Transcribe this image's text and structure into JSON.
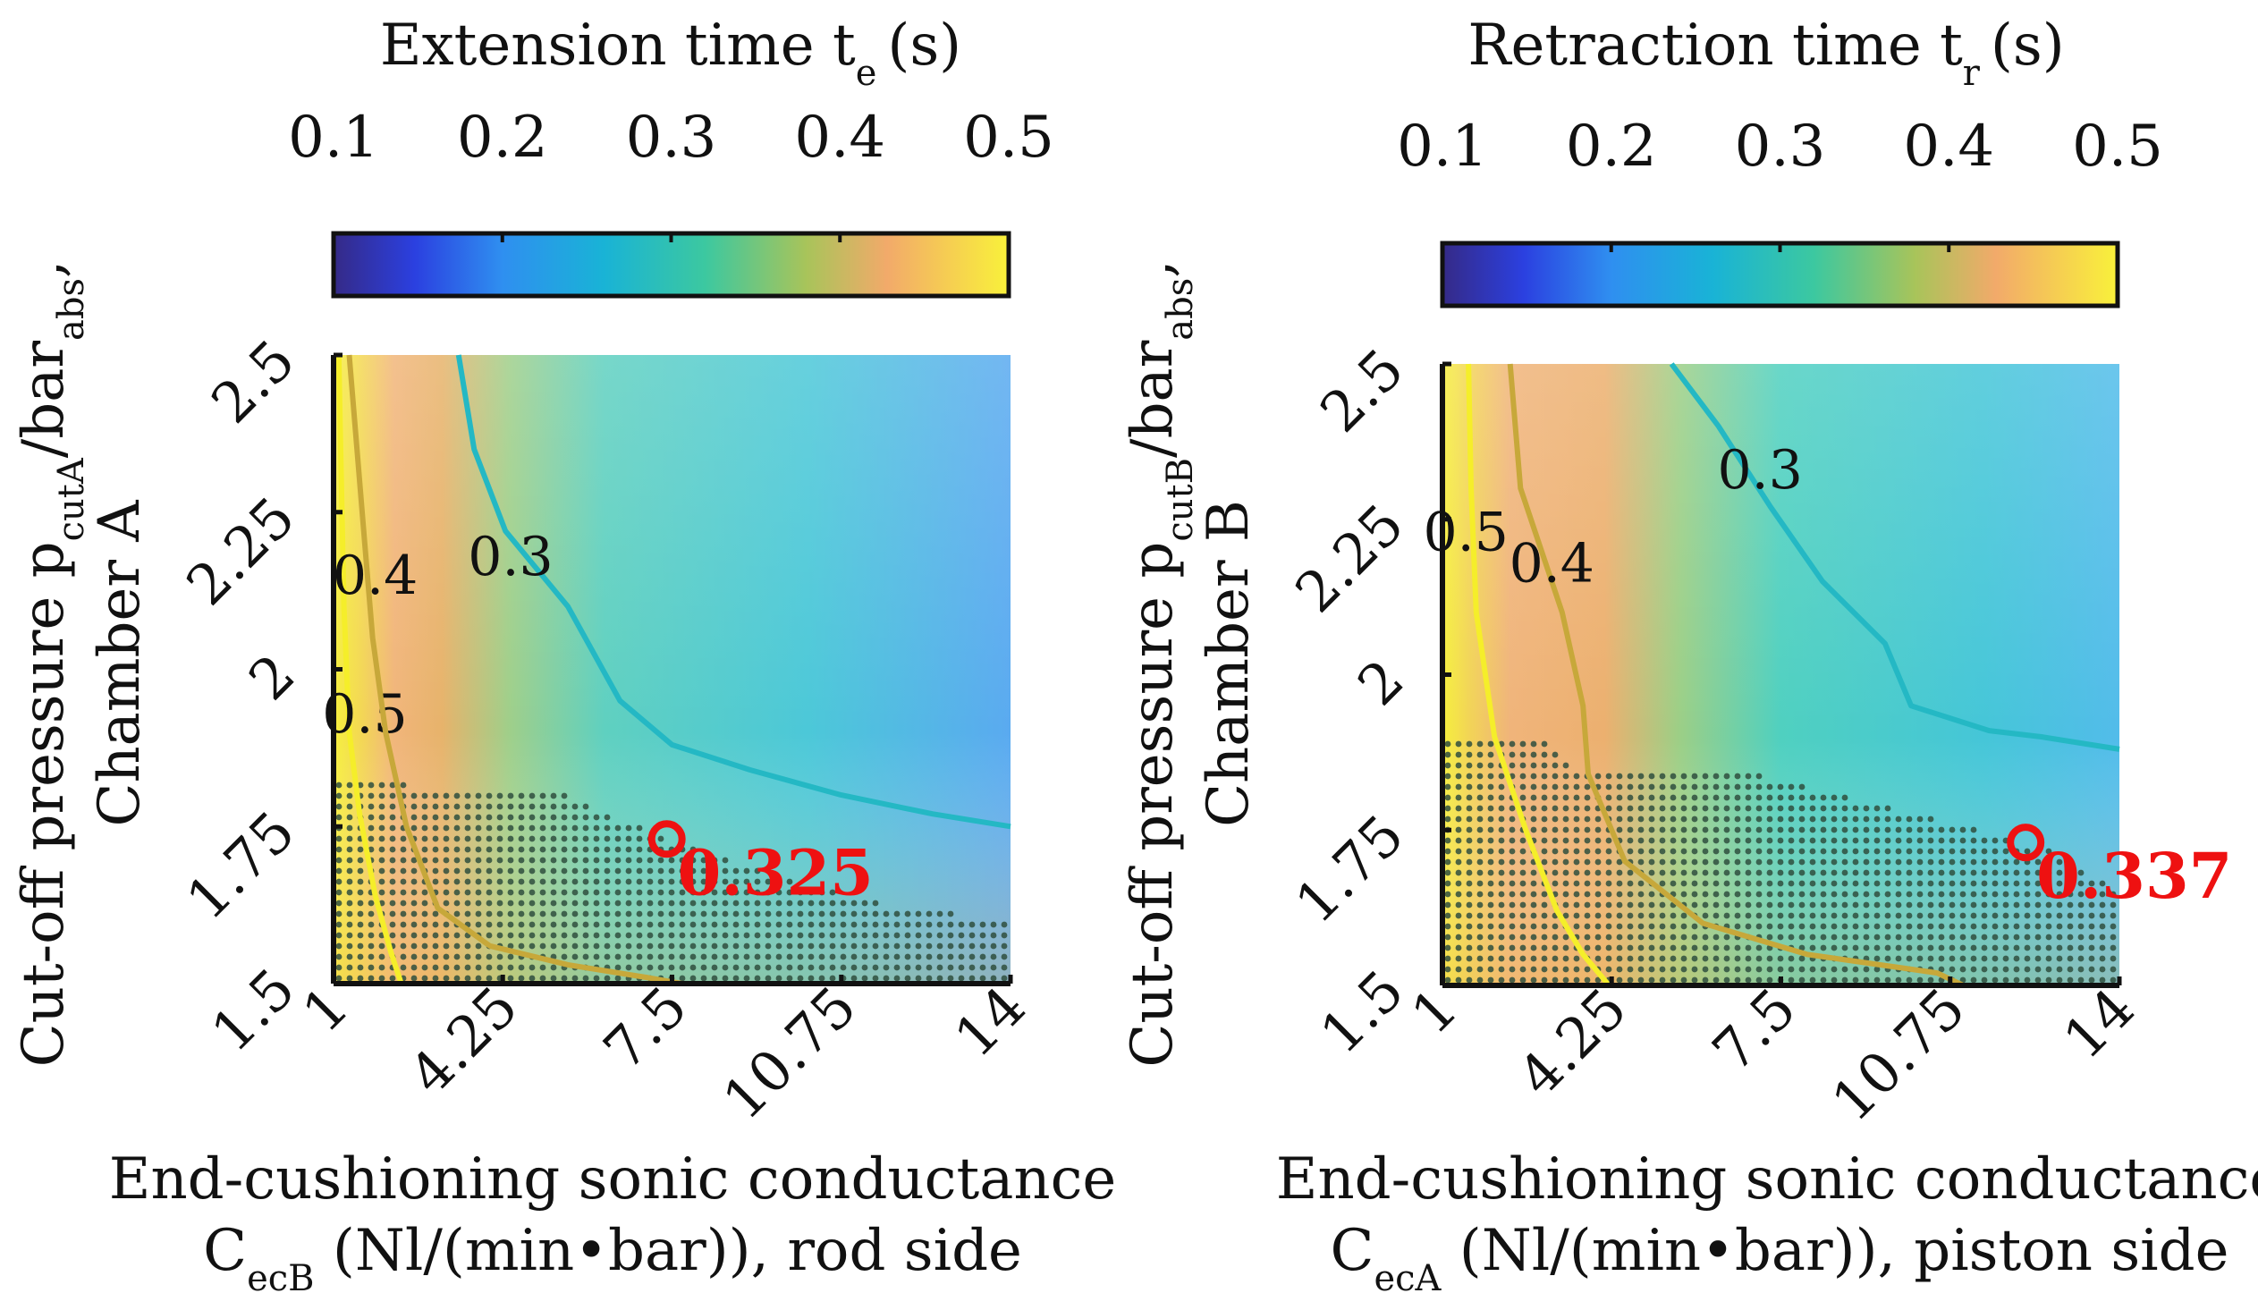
{
  "chart_data": [
    {
      "type": "heatmap",
      "panel": "left",
      "title": "Extension time t",
      "title_sub": "e",
      "title_unit": "(s)",
      "colorbar": {
        "ticks": [
          "0.1",
          "0.2",
          "0.3",
          "0.4",
          "0.5"
        ],
        "range": [
          0.1,
          0.5
        ],
        "colormap": "parula"
      },
      "x_label_line1": "End-cushioning sonic conductance",
      "x_label_line2_main": "C",
      "x_label_line2_sub": "ecB",
      "x_label_line2_rest": " (Nl/(min•bar)), rod side",
      "y_label_line1_main": "Cut-off pressure p",
      "y_label_line1_sub": "cutA",
      "y_label_line1_mid": "/bar",
      "y_label_line1_sub2": "abs",
      "y_label_line1_end": ",",
      "y_label_line2": "Chamber A",
      "x_ticks": [
        "1",
        "4.25",
        "7.5",
        "10.75",
        "14"
      ],
      "x_tick_values": [
        1,
        4.25,
        7.5,
        10.75,
        14
      ],
      "y_ticks": [
        "1.5",
        "1.75",
        "2",
        "2.25",
        "2.5"
      ],
      "y_tick_values": [
        1.5,
        1.75,
        2,
        2.25,
        2.5
      ],
      "xlim": [
        1,
        14
      ],
      "ylim": [
        1.5,
        2.5
      ],
      "contours": [
        {
          "level": 0.5,
          "label": "0.5",
          "label_at": [
            1.6,
            1.9
          ],
          "points": [
            [
              1.1,
              2.5
            ],
            [
              1.15,
              2.3
            ],
            [
              1.2,
              2.1
            ],
            [
              1.3,
              1.9
            ],
            [
              1.5,
              1.77
            ],
            [
              1.8,
              1.64
            ],
            [
              2.1,
              1.55
            ],
            [
              2.3,
              1.5
            ]
          ]
        },
        {
          "level": 0.4,
          "label": "0.4",
          "label_at": [
            1.8,
            2.12
          ],
          "points": [
            [
              1.3,
              2.5
            ],
            [
              1.45,
              2.35
            ],
            [
              1.6,
              2.2
            ],
            [
              1.75,
              2.05
            ],
            [
              2.0,
              1.9
            ],
            [
              2.4,
              1.75
            ],
            [
              3.0,
              1.62
            ],
            [
              4.0,
              1.56
            ],
            [
              5.5,
              1.53
            ],
            [
              7.0,
              1.51
            ],
            [
              7.7,
              1.5
            ]
          ]
        },
        {
          "level": 0.3,
          "label": "0.3",
          "label_at": [
            4.4,
            2.15
          ],
          "points": [
            [
              3.4,
              2.5
            ],
            [
              3.7,
              2.35
            ],
            [
              4.3,
              2.22
            ],
            [
              5.5,
              2.1
            ],
            [
              6.5,
              1.95
            ],
            [
              7.5,
              1.88
            ],
            [
              9.0,
              1.84
            ],
            [
              10.75,
              1.8
            ],
            [
              12.5,
              1.77
            ],
            [
              14,
              1.75
            ]
          ]
        }
      ],
      "feasible_region": "dotted area",
      "optimum": {
        "x": 7.4,
        "y": 1.73,
        "label": "0.325"
      }
    },
    {
      "type": "heatmap",
      "panel": "right",
      "title": "Retraction time t",
      "title_sub": "r",
      "title_unit": "(s)",
      "colorbar": {
        "ticks": [
          "0.1",
          "0.2",
          "0.3",
          "0.4",
          "0.5"
        ],
        "range": [
          0.1,
          0.5
        ],
        "colormap": "parula"
      },
      "x_label_line1": "End-cushioning sonic conductance",
      "x_label_line2_main": "C",
      "x_label_line2_sub": "ecA",
      "x_label_line2_rest": " (Nl/(min•bar)), piston side",
      "y_label_line1_main": "Cut-off pressure p",
      "y_label_line1_sub": "cutB",
      "y_label_line1_mid": "/bar",
      "y_label_line1_sub2": "abs",
      "y_label_line1_end": ",",
      "y_label_line2": "Chamber B",
      "x_ticks": [
        "1",
        "4.25",
        "7.5",
        "10.75",
        "14"
      ],
      "x_tick_values": [
        1,
        4.25,
        7.5,
        10.75,
        14
      ],
      "y_ticks": [
        "1.5",
        "1.75",
        "2",
        "2.25",
        "2.5"
      ],
      "y_tick_values": [
        1.5,
        1.75,
        2,
        2.25,
        2.5
      ],
      "xlim": [
        1,
        14
      ],
      "ylim": [
        1.5,
        2.5
      ],
      "contours": [
        {
          "level": 0.5,
          "label": "0.5",
          "label_at": [
            1.45,
            2.2
          ],
          "points": [
            [
              1.5,
              2.5
            ],
            [
              1.55,
              2.3
            ],
            [
              1.65,
              2.1
            ],
            [
              2.0,
              1.9
            ],
            [
              2.6,
              1.75
            ],
            [
              3.2,
              1.62
            ],
            [
              3.7,
              1.55
            ],
            [
              4.2,
              1.5
            ]
          ]
        },
        {
          "level": 0.4,
          "label": "0.4",
          "label_at": [
            3.1,
            2.15
          ],
          "points": [
            [
              2.3,
              2.5
            ],
            [
              2.5,
              2.3
            ],
            [
              3.3,
              2.1
            ],
            [
              3.7,
              1.95
            ],
            [
              3.8,
              1.84
            ],
            [
              4.5,
              1.7
            ],
            [
              6.0,
              1.6
            ],
            [
              8.0,
              1.55
            ],
            [
              10.5,
              1.52
            ],
            [
              11.0,
              1.5
            ]
          ]
        },
        {
          "level": 0.3,
          "label": "0.3",
          "label_at": [
            7.1,
            2.3
          ],
          "points": [
            [
              5.4,
              2.5
            ],
            [
              6.3,
              2.4
            ],
            [
              7.3,
              2.27
            ],
            [
              8.3,
              2.15
            ],
            [
              9.5,
              2.05
            ],
            [
              10.0,
              1.95
            ],
            [
              11.5,
              1.91
            ],
            [
              12.5,
              1.9
            ],
            [
              14,
              1.88
            ]
          ]
        }
      ],
      "feasible_region": "dotted area",
      "optimum": {
        "x": 12.2,
        "y": 1.73,
        "label": "0.337"
      }
    }
  ]
}
